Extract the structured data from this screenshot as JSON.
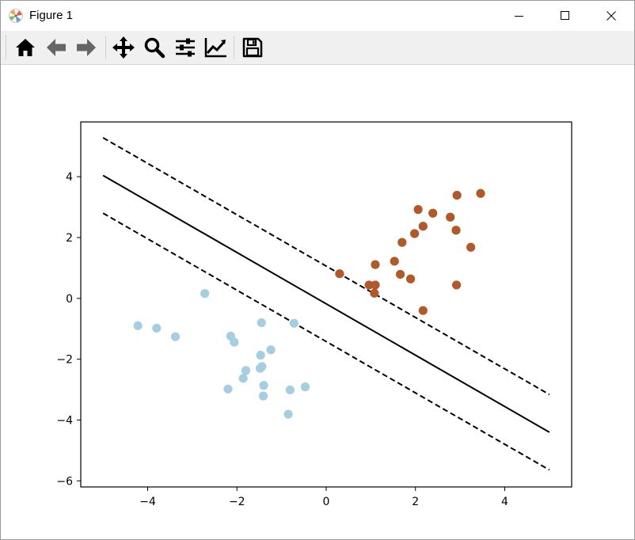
{
  "window": {
    "title": "Figure 1",
    "controls": [
      "minimize",
      "maximize",
      "close"
    ]
  },
  "toolbar": {
    "buttons": [
      {
        "name": "home",
        "icon": "home-icon",
        "tooltip": "Reset original view"
      },
      {
        "name": "back",
        "icon": "arrow-left-icon",
        "tooltip": "Back to previous view"
      },
      {
        "name": "forward",
        "icon": "arrow-right-icon",
        "tooltip": "Forward to next view"
      },
      {
        "name": "pan",
        "icon": "move-icon",
        "tooltip": "Pan axes"
      },
      {
        "name": "zoom",
        "icon": "magnifier-icon",
        "tooltip": "Zoom to rectangle"
      },
      {
        "name": "subplots",
        "icon": "sliders-icon",
        "tooltip": "Configure subplots"
      },
      {
        "name": "customize",
        "icon": "chart-line-icon",
        "tooltip": "Edit axis, curve and image parameters"
      },
      {
        "name": "save",
        "icon": "floppy-disk-icon",
        "tooltip": "Save the figure"
      }
    ]
  },
  "colors": {
    "class_a": "#a6cee3",
    "class_b": "#b15928",
    "line": "#000000"
  },
  "chart_data": {
    "type": "scatter",
    "title": "",
    "xlabel": "",
    "ylabel": "",
    "xlim": [
      -5.5,
      5.5
    ],
    "ylim": [
      -6.2,
      5.8
    ],
    "xticks": [
      -4,
      -2,
      0,
      2,
      4
    ],
    "yticks": [
      -6,
      -4,
      -2,
      0,
      2,
      4
    ],
    "xtick_labels": [
      "−4",
      "−2",
      "0",
      "2",
      "4"
    ],
    "ytick_labels": [
      "−6",
      "−4",
      "−2",
      "0",
      "2",
      "4"
    ],
    "grid": false,
    "series": [
      {
        "color": "#a6cee3",
        "points": [
          [
            -4.22,
            -0.9
          ],
          [
            -3.8,
            -0.98
          ],
          [
            -3.38,
            -1.26
          ],
          [
            -2.72,
            0.16
          ],
          [
            -2.14,
            -1.24
          ],
          [
            -2.06,
            -1.44
          ],
          [
            -1.45,
            -0.8
          ],
          [
            -0.72,
            -0.82
          ],
          [
            -1.47,
            -1.87
          ],
          [
            -1.24,
            -1.69
          ],
          [
            -1.44,
            -2.24
          ],
          [
            -1.48,
            -2.3
          ],
          [
            -1.8,
            -2.37
          ],
          [
            -1.86,
            -2.63
          ],
          [
            -2.2,
            -2.98
          ],
          [
            -1.4,
            -2.86
          ],
          [
            -0.81,
            -3.01
          ],
          [
            -0.47,
            -2.91
          ],
          [
            -1.41,
            -3.21
          ],
          [
            -0.85,
            -3.81
          ]
        ]
      },
      {
        "color": "#b15928",
        "points": [
          [
            0.3,
            0.81
          ],
          [
            1.1,
            1.11
          ],
          [
            0.96,
            0.44
          ],
          [
            1.1,
            0.44
          ],
          [
            1.08,
            0.17
          ],
          [
            1.53,
            1.22
          ],
          [
            1.66,
            0.79
          ],
          [
            1.7,
            1.84
          ],
          [
            1.89,
            0.64
          ],
          [
            1.98,
            2.13
          ],
          [
            2.06,
            2.92
          ],
          [
            2.17,
            2.37
          ],
          [
            2.39,
            2.8
          ],
          [
            2.17,
            -0.4
          ],
          [
            2.78,
            2.67
          ],
          [
            2.93,
            3.39
          ],
          [
            2.91,
            2.24
          ],
          [
            2.92,
            0.44
          ],
          [
            3.24,
            1.68
          ],
          [
            3.46,
            3.45
          ]
        ]
      }
    ],
    "lines": [
      {
        "style": "solid",
        "color": "#000000",
        "points": [
          [
            -5,
            4.04
          ],
          [
            5,
            -4.4
          ]
        ]
      },
      {
        "style": "dashed",
        "color": "#000000",
        "points": [
          [
            -5,
            5.28
          ],
          [
            5,
            -3.16
          ]
        ]
      },
      {
        "style": "dashed",
        "color": "#000000",
        "points": [
          [
            -5,
            2.8
          ],
          [
            5,
            -5.64
          ]
        ]
      }
    ]
  }
}
